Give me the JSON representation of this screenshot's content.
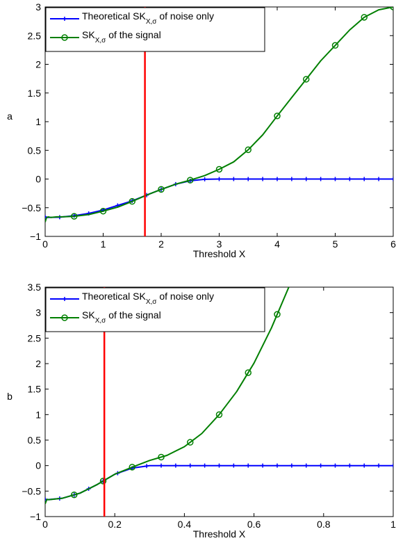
{
  "chart_data": [
    {
      "type": "line",
      "panel_label": "a",
      "xlabel": "Threshold X",
      "ylabel": "",
      "xlim": [
        0,
        6
      ],
      "ylim": [
        -1,
        3
      ],
      "xticks": [
        "0",
        "1",
        "2",
        "3",
        "4",
        "5",
        "6"
      ],
      "yticks": [
        "−1",
        "−0.5",
        "0",
        "0.5",
        "1",
        "1.5",
        "2",
        "2.5",
        "3"
      ],
      "grid": false,
      "legend_position": "top-left",
      "threshold_line_x": 1.72,
      "threshold_line_color": "#ff0000",
      "series": [
        {
          "name": "Theoretical SK",
          "sub": "X,σ",
          "tail": " of noise only",
          "color": "#0000ff",
          "marker": "plus",
          "x": [
            0,
            0.05,
            0.25,
            0.5,
            0.75,
            1,
            1.25,
            1.5,
            1.75,
            2,
            2.25,
            2.5,
            2.75,
            3,
            3.5,
            4,
            4.5,
            5,
            5.5,
            6
          ],
          "values": [
            -0.66,
            -0.67,
            -0.665,
            -0.64,
            -0.6,
            -0.54,
            -0.46,
            -0.38,
            -0.28,
            -0.18,
            -0.09,
            -0.03,
            -0.005,
            0,
            0,
            0,
            0,
            0,
            0,
            0
          ]
        },
        {
          "name": "SK",
          "sub": "X,σ",
          "tail": " of the signal",
          "color": "#007f00",
          "marker": "circle",
          "x": [
            0,
            0.02,
            0.05,
            0.1,
            0.2,
            0.3,
            0.5,
            0.75,
            1,
            1.25,
            1.5,
            1.75,
            2,
            2.25,
            2.5,
            2.75,
            3,
            3.25,
            3.5,
            3.75,
            4,
            4.25,
            4.5,
            4.75,
            5,
            5.25,
            5.5,
            5.75,
            6
          ],
          "values": [
            -0.75,
            -0.68,
            -0.66,
            -0.67,
            -0.66,
            -0.66,
            -0.65,
            -0.62,
            -0.56,
            -0.49,
            -0.39,
            -0.28,
            -0.18,
            -0.09,
            -0.02,
            0.06,
            0.17,
            0.3,
            0.51,
            0.77,
            1.1,
            1.42,
            1.74,
            2.06,
            2.33,
            2.6,
            2.82,
            2.95,
            3.0
          ]
        }
      ]
    },
    {
      "type": "line",
      "panel_label": "b",
      "xlabel": "Threshold X",
      "ylabel": "",
      "xlim": [
        0,
        1
      ],
      "ylim": [
        -1,
        3.5
      ],
      "xticks": [
        "0",
        "0.2",
        "0.4",
        "0.6",
        "0.8",
        "1"
      ],
      "yticks": [
        "−1",
        "−0.5",
        "0",
        "0.5",
        "1",
        "1.5",
        "2",
        "2.5",
        "3",
        "3.5"
      ],
      "grid": false,
      "legend_position": "top-left",
      "threshold_line_x": 0.17,
      "threshold_line_color": "#ff0000",
      "series": [
        {
          "name": "Theoretical SK",
          "sub": "X,σ",
          "tail": " of noise only",
          "color": "#0000ff",
          "marker": "plus",
          "x": [
            0,
            0.005,
            0.05,
            0.1,
            0.15,
            0.2,
            0.25,
            0.3,
            0.4,
            0.5,
            0.6,
            0.7,
            0.8,
            0.9,
            1
          ],
          "values": [
            -0.66,
            -0.67,
            -0.64,
            -0.54,
            -0.37,
            -0.17,
            -0.05,
            0,
            0,
            0,
            0,
            0,
            0,
            0,
            0
          ]
        },
        {
          "name": "SK",
          "sub": "X,σ",
          "tail": " of the signal",
          "color": "#007f00",
          "marker": "circle",
          "x": [
            0,
            0.005,
            0.01,
            0.05,
            0.1,
            0.15,
            0.2,
            0.25,
            0.3,
            0.35,
            0.4,
            0.45,
            0.5,
            0.55,
            0.6,
            0.65,
            0.7
          ],
          "values": [
            -0.75,
            -0.66,
            -0.67,
            -0.64,
            -0.54,
            -0.37,
            -0.17,
            -0.03,
            0.1,
            0.2,
            0.37,
            0.63,
            1.0,
            1.45,
            2.01,
            2.7,
            3.5
          ]
        }
      ]
    }
  ]
}
